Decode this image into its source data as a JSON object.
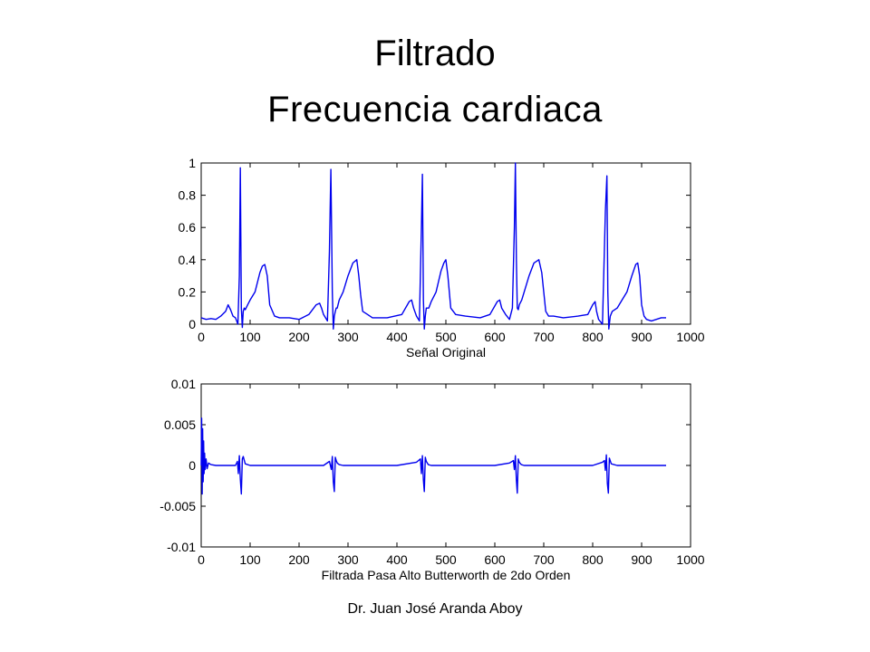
{
  "slide": {
    "title_line1": "Filtrado",
    "title_line2": "Frecuencia cardiaca",
    "footer": "Dr. Juan José Aranda Aboy"
  },
  "colors": {
    "series": "#0000ee",
    "axis": "#000000"
  },
  "chart_data": [
    {
      "type": "line",
      "xlabel": "Señal Original",
      "ylabel": "",
      "xlim": [
        0,
        1000
      ],
      "ylim": [
        0,
        1
      ],
      "xticks": [
        0,
        100,
        200,
        300,
        400,
        500,
        600,
        700,
        800,
        900,
        1000
      ],
      "xtick_labels": [
        "0",
        "100",
        "200",
        "300",
        "400",
        "500",
        "600",
        "700",
        "800",
        "900",
        "1000"
      ],
      "yticks": [
        0,
        0.2,
        0.4,
        0.6,
        0.8,
        1
      ],
      "ytick_labels": [
        "0",
        "0.2",
        "0.4",
        "0.6",
        "0.8",
        "1"
      ],
      "grid": false,
      "series": [
        {
          "x": [
            0,
            10,
            20,
            30,
            40,
            50,
            55,
            60,
            65,
            70,
            75,
            78,
            80,
            82,
            84,
            86,
            88,
            90,
            95,
            100,
            110,
            120,
            125,
            130,
            135,
            140,
            150,
            160,
            180,
            200,
            220,
            235,
            242,
            246,
            250,
            258,
            262,
            265,
            268,
            270,
            272,
            274,
            276,
            278,
            282,
            290,
            300,
            310,
            318,
            322,
            326,
            330,
            340,
            350,
            380,
            410,
            425,
            430,
            434,
            440,
            446,
            450,
            452,
            454,
            456,
            458,
            460,
            465,
            470,
            480,
            490,
            496,
            500,
            504,
            510,
            520,
            540,
            570,
            590,
            605,
            610,
            614,
            622,
            630,
            636,
            640,
            642,
            644,
            646,
            648,
            650,
            655,
            660,
            670,
            680,
            690,
            696,
            700,
            704,
            710,
            720,
            740,
            770,
            790,
            800,
            805,
            808,
            812,
            820,
            826,
            829,
            831,
            833,
            836,
            840,
            850,
            860,
            870,
            880,
            888,
            892,
            896,
            900,
            905,
            910,
            920,
            940,
            950
          ],
          "y": [
            0.04,
            0.03,
            0.035,
            0.03,
            0.05,
            0.08,
            0.12,
            0.09,
            0.05,
            0.04,
            0.0,
            0.3,
            0.97,
            0.1,
            -0.02,
            0.08,
            0.1,
            0.09,
            0.12,
            0.15,
            0.2,
            0.32,
            0.36,
            0.37,
            0.3,
            0.12,
            0.05,
            0.04,
            0.04,
            0.03,
            0.06,
            0.12,
            0.13,
            0.1,
            0.06,
            0.02,
            0.45,
            0.96,
            0.2,
            -0.03,
            0.05,
            0.08,
            0.1,
            0.1,
            0.15,
            0.2,
            0.3,
            0.38,
            0.4,
            0.3,
            0.18,
            0.08,
            0.06,
            0.04,
            0.04,
            0.06,
            0.14,
            0.15,
            0.1,
            0.05,
            0.02,
            0.6,
            0.93,
            0.15,
            -0.03,
            0.05,
            0.1,
            0.1,
            0.14,
            0.2,
            0.33,
            0.38,
            0.4,
            0.3,
            0.1,
            0.06,
            0.05,
            0.04,
            0.06,
            0.14,
            0.15,
            0.1,
            0.06,
            0.03,
            0.1,
            0.6,
            1.0,
            0.4,
            0.1,
            0.09,
            0.12,
            0.15,
            0.2,
            0.3,
            0.38,
            0.4,
            0.32,
            0.2,
            0.08,
            0.05,
            0.05,
            0.04,
            0.05,
            0.06,
            0.12,
            0.14,
            0.08,
            0.03,
            0.0,
            0.7,
            0.92,
            0.2,
            -0.03,
            0.05,
            0.08,
            0.1,
            0.15,
            0.2,
            0.3,
            0.37,
            0.38,
            0.3,
            0.12,
            0.05,
            0.03,
            0.02,
            0.04,
            0.04
          ]
        }
      ]
    },
    {
      "type": "line",
      "xlabel": "Filtrada Pasa Alto Butterworth de 2do Orden",
      "ylabel": "",
      "xlim": [
        0,
        1000
      ],
      "ylim": [
        -0.01,
        0.01
      ],
      "xticks": [
        0,
        100,
        200,
        300,
        400,
        500,
        600,
        700,
        800,
        900,
        1000
      ],
      "xtick_labels": [
        "0",
        "100",
        "200",
        "300",
        "400",
        "500",
        "600",
        "700",
        "800",
        "900",
        "1000"
      ],
      "yticks": [
        -0.01,
        -0.005,
        0,
        0.005,
        0.01
      ],
      "ytick_labels": [
        "-0.01",
        "-0.005",
        "0",
        "0.005",
        "0.01"
      ],
      "grid": false,
      "series": [
        {
          "x": [
            0,
            1,
            2,
            3,
            4,
            5,
            6,
            7,
            8,
            10,
            12,
            15,
            20,
            30,
            40,
            50,
            60,
            70,
            74,
            76,
            78,
            80,
            82,
            84,
            86,
            90,
            100,
            150,
            200,
            250,
            262,
            266,
            268,
            270,
            272,
            274,
            276,
            278,
            282,
            290,
            350,
            400,
            440,
            448,
            450,
            452,
            454,
            456,
            458,
            460,
            464,
            470,
            500,
            550,
            600,
            630,
            638,
            640,
            642,
            644,
            646,
            648,
            650,
            654,
            660,
            700,
            750,
            800,
            820,
            824,
            826,
            828,
            830,
            832,
            834,
            838,
            850,
            900,
            950
          ],
          "y": [
            0,
            0.0058,
            -0.0035,
            0.0045,
            -0.002,
            0.003,
            -0.001,
            0.0015,
            -0.0005,
            0.0008,
            -0.0004,
            0.0003,
            0.0001,
            0,
            0,
            0,
            0,
            0,
            0.0005,
            -0.001,
            0.0012,
            -0.0017,
            -0.0035,
            0.0008,
            0.0011,
            0.0002,
            0,
            0,
            0,
            0,
            0.0005,
            -0.0005,
            0.0011,
            -0.002,
            -0.0032,
            0.001,
            0.0006,
            0.0003,
            0.0001,
            0,
            0,
            0,
            0.0004,
            0.0008,
            -0.001,
            0.0012,
            -0.0018,
            -0.0032,
            0.001,
            0.0005,
            0.0001,
            0,
            0,
            0,
            0,
            0.0003,
            0.0006,
            -0.0005,
            0.0012,
            -0.0018,
            -0.0034,
            0.0008,
            0.0004,
            0.0001,
            0,
            0,
            0,
            0,
            0.0004,
            0.0006,
            -0.0006,
            0.0013,
            -0.0022,
            -0.0034,
            0.0009,
            0.0002,
            0,
            0,
            0
          ]
        }
      ]
    }
  ]
}
